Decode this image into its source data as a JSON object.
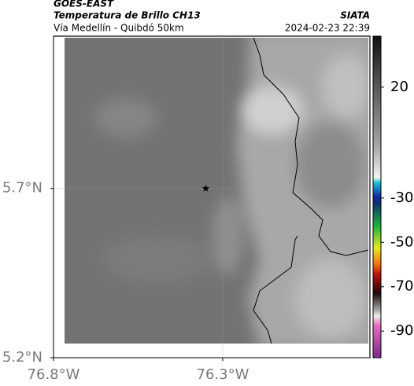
{
  "header": {
    "source": "GOES-EAST",
    "title": "Temperatura de Brillo CH13",
    "agency": "SIATA",
    "subtitle": "Vía Medellín - Quibdó 50km",
    "datetime": "2024-02-23 22:39"
  },
  "map": {
    "xlim": [
      -76.8,
      -75.865
    ],
    "ylim": [
      5.2,
      6.15
    ],
    "xticks": [
      {
        "value": -76.8,
        "label": "76.8°W"
      },
      {
        "value": -76.3,
        "label": "76.3°W"
      }
    ],
    "yticks": [
      {
        "value": 5.7,
        "label": "5.7°N"
      },
      {
        "value": 5.2,
        "label": "5.2°N"
      }
    ],
    "grid": true,
    "marker": {
      "lon": -76.35,
      "lat": 5.7
    }
  },
  "colorbar": {
    "lim": [
      43,
      -102
    ],
    "ticks": [
      20,
      -30,
      -50,
      -70,
      -90
    ]
  }
}
